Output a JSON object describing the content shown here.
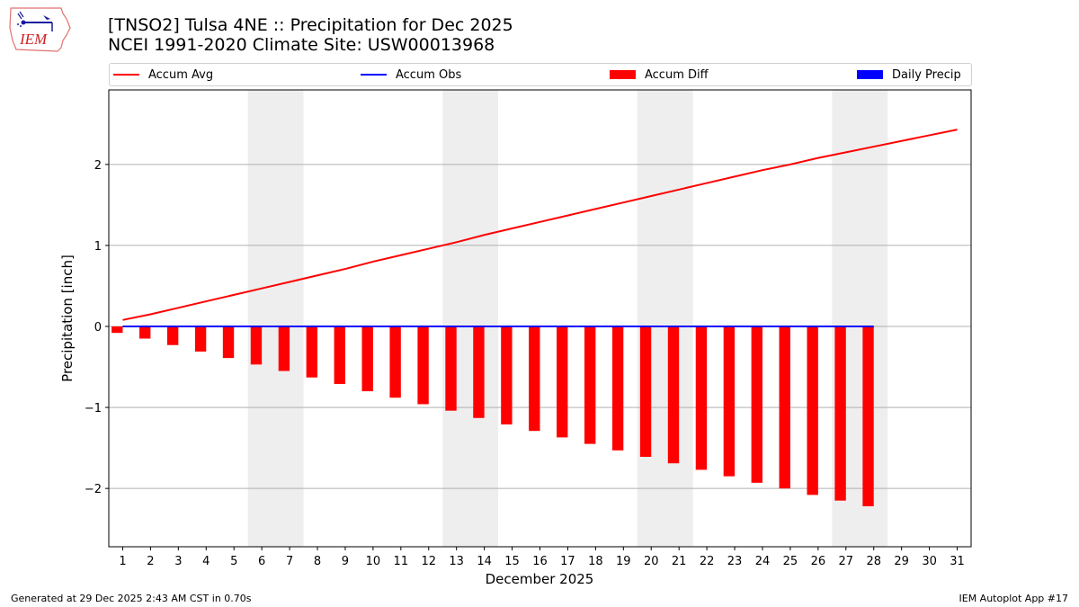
{
  "header": {
    "logo_text": "IEM",
    "title_line1": "[TNSO2] Tulsa 4NE :: Precipitation for Dec 2025",
    "title_line2": "NCEI 1991-2020 Climate Site: USW00013968"
  },
  "legend": [
    {
      "label": "Accum Avg",
      "kind": "line",
      "color": "#ff0000"
    },
    {
      "label": "Accum Obs",
      "kind": "line",
      "color": "#0000ff"
    },
    {
      "label": "Accum Diff",
      "kind": "patch",
      "color": "#ff0000"
    },
    {
      "label": "Daily Precip",
      "kind": "patch",
      "color": "#0000ff"
    }
  ],
  "footer": {
    "left": "Generated at 29 Dec 2025 2:43 AM CST in 0.70s",
    "right": "IEM Autoplot App #17"
  },
  "chart_data": {
    "type": "bar",
    "title": "[TNSO2] Tulsa 4NE :: Precipitation for Dec 2025",
    "subtitle": "NCEI 1991-2020 Climate Site: USW00013968",
    "xlabel": "December 2025",
    "ylabel": "Precipitation [inch]",
    "xlim": [
      0.5,
      31.5
    ],
    "ylim": [
      -2.72,
      2.92
    ],
    "x": [
      1,
      2,
      3,
      4,
      5,
      6,
      7,
      8,
      9,
      10,
      11,
      12,
      13,
      14,
      15,
      16,
      17,
      18,
      19,
      20,
      21,
      22,
      23,
      24,
      25,
      26,
      27,
      28,
      29,
      30,
      31
    ],
    "xticks": [
      "1",
      "2",
      "3",
      "4",
      "5",
      "6",
      "7",
      "8",
      "9",
      "10",
      "11",
      "12",
      "13",
      "14",
      "15",
      "16",
      "17",
      "18",
      "19",
      "20",
      "21",
      "22",
      "23",
      "24",
      "25",
      "26",
      "27",
      "28",
      "29",
      "30",
      "31"
    ],
    "yticks": [
      -2,
      -1,
      0,
      1,
      2
    ],
    "ytick_labels": [
      "−2",
      "−1",
      "0",
      "1",
      "2"
    ],
    "grid": "y",
    "legend_position": "top",
    "weekend_shading": [
      [
        5.5,
        7.5
      ],
      [
        12.5,
        14.5
      ],
      [
        19.5,
        21.5
      ],
      [
        26.5,
        28.5
      ]
    ],
    "series": [
      {
        "name": "Accum Avg",
        "type": "line",
        "color": "#ff0000",
        "x": [
          1,
          2,
          3,
          4,
          5,
          6,
          7,
          8,
          9,
          10,
          11,
          12,
          13,
          14,
          15,
          16,
          17,
          18,
          19,
          20,
          21,
          22,
          23,
          24,
          25,
          26,
          27,
          28,
          29,
          30,
          31
        ],
        "values": [
          0.08,
          0.15,
          0.23,
          0.31,
          0.39,
          0.47,
          0.55,
          0.63,
          0.71,
          0.8,
          0.88,
          0.96,
          1.04,
          1.13,
          1.21,
          1.29,
          1.37,
          1.45,
          1.53,
          1.61,
          1.69,
          1.77,
          1.85,
          1.93,
          2.0,
          2.08,
          2.15,
          2.22,
          2.29,
          2.36,
          2.43
        ]
      },
      {
        "name": "Accum Obs",
        "type": "line",
        "color": "#0000ff",
        "x": [
          1,
          2,
          3,
          4,
          5,
          6,
          7,
          8,
          9,
          10,
          11,
          12,
          13,
          14,
          15,
          16,
          17,
          18,
          19,
          20,
          21,
          22,
          23,
          24,
          25,
          26,
          27,
          28
        ],
        "values": [
          0,
          0,
          0,
          0,
          0,
          0,
          0,
          0,
          0,
          0,
          0,
          0,
          0,
          0,
          0,
          0,
          0,
          0,
          0,
          0,
          0,
          0,
          0,
          0,
          0,
          0,
          0,
          0
        ]
      },
      {
        "name": "Accum Diff",
        "type": "bar",
        "color": "#ff0000",
        "x": [
          1,
          2,
          3,
          4,
          5,
          6,
          7,
          8,
          9,
          10,
          11,
          12,
          13,
          14,
          15,
          16,
          17,
          18,
          19,
          20,
          21,
          22,
          23,
          24,
          25,
          26,
          27,
          28
        ],
        "values": [
          -0.08,
          -0.15,
          -0.23,
          -0.31,
          -0.39,
          -0.47,
          -0.55,
          -0.63,
          -0.71,
          -0.8,
          -0.88,
          -0.96,
          -1.04,
          -1.13,
          -1.21,
          -1.29,
          -1.37,
          -1.45,
          -1.53,
          -1.61,
          -1.69,
          -1.77,
          -1.85,
          -1.93,
          -2.0,
          -2.08,
          -2.15,
          -2.22
        ]
      },
      {
        "name": "Daily Precip",
        "type": "bar",
        "color": "#0000ff",
        "x": [
          1,
          2,
          3,
          4,
          5,
          6,
          7,
          8,
          9,
          10,
          11,
          12,
          13,
          14,
          15,
          16,
          17,
          18,
          19,
          20,
          21,
          22,
          23,
          24,
          25,
          26,
          27,
          28
        ],
        "values": [
          0,
          0,
          0,
          0,
          0,
          0,
          0,
          0,
          0,
          0,
          0,
          0,
          0,
          0,
          0,
          0,
          0,
          0,
          0,
          0,
          0,
          0,
          0,
          0,
          0,
          0,
          0,
          0
        ]
      }
    ]
  }
}
